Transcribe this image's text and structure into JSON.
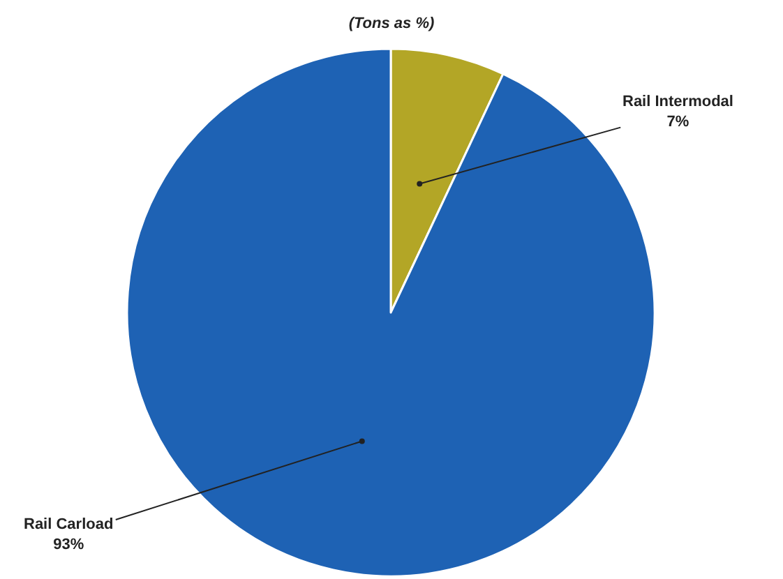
{
  "chart_data": {
    "type": "pie",
    "title": "(Tons as %)",
    "categories": [
      "Rail Intermodal",
      "Rail Carload"
    ],
    "values": [
      7,
      93
    ],
    "value_labels": [
      "7%",
      "93%"
    ],
    "colors": [
      "#b3a626",
      "#1e62b4"
    ]
  }
}
